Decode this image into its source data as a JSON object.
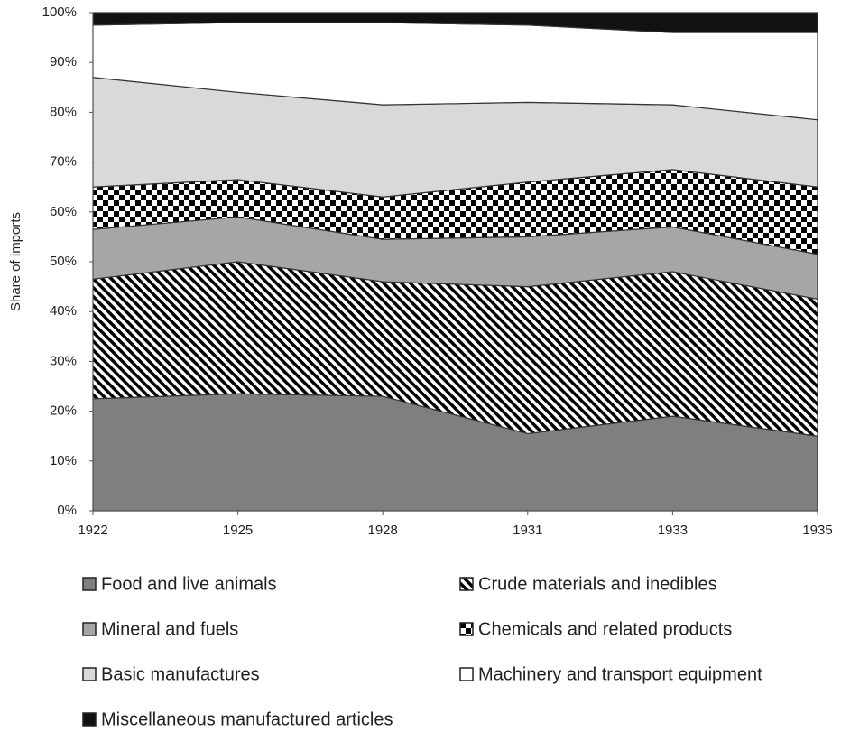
{
  "chart_data": {
    "type": "stacked_area",
    "y_label": "Share of imports",
    "categories": [
      "1922",
      "1925",
      "1928",
      "1931",
      "1933",
      "1935"
    ],
    "ylim": [
      0,
      100
    ],
    "yticks": [
      {
        "value": 0,
        "label": "0%"
      },
      {
        "value": 10,
        "label": "10%"
      },
      {
        "value": 20,
        "label": "20%"
      },
      {
        "value": 30,
        "label": "30%"
      },
      {
        "value": 40,
        "label": "40%"
      },
      {
        "value": 50,
        "label": "50%"
      },
      {
        "value": 60,
        "label": "60%"
      },
      {
        "value": 70,
        "label": "70%"
      },
      {
        "value": 80,
        "label": "80%"
      },
      {
        "value": 90,
        "label": "90%"
      },
      {
        "value": 100,
        "label": "100%"
      }
    ],
    "series": [
      {
        "name": "Food and live animals",
        "color": "#7f7f7f",
        "values": [
          22.5,
          23.5,
          23,
          15.5,
          19,
          15
        ]
      },
      {
        "name": "Crude materials and inedibles",
        "color": "#000000",
        "pattern": "diagonal",
        "values": [
          24,
          26.5,
          23,
          29.5,
          29,
          27.5
        ]
      },
      {
        "name": "Mineral and fuels",
        "color": "#a6a6a6",
        "values": [
          10,
          9,
          8.5,
          10,
          9,
          9
        ]
      },
      {
        "name": "Chemicals and related products",
        "color": "#000000",
        "pattern": "checker",
        "values": [
          8.5,
          7.5,
          8.5,
          11,
          11.5,
          13.5
        ]
      },
      {
        "name": "Basic manufactures",
        "color": "#d9d9d9",
        "values": [
          22,
          17.5,
          18.5,
          16,
          13,
          13.5
        ]
      },
      {
        "name": "Machinery and transport equipment",
        "color": "#ffffff",
        "values": [
          10.5,
          14,
          16.5,
          15.5,
          14.5,
          17.5
        ]
      },
      {
        "name": "Miscellaneous manufactured articles",
        "color": "#111111",
        "values": [
          2.5,
          2,
          2,
          2.5,
          4,
          4
        ]
      }
    ]
  }
}
